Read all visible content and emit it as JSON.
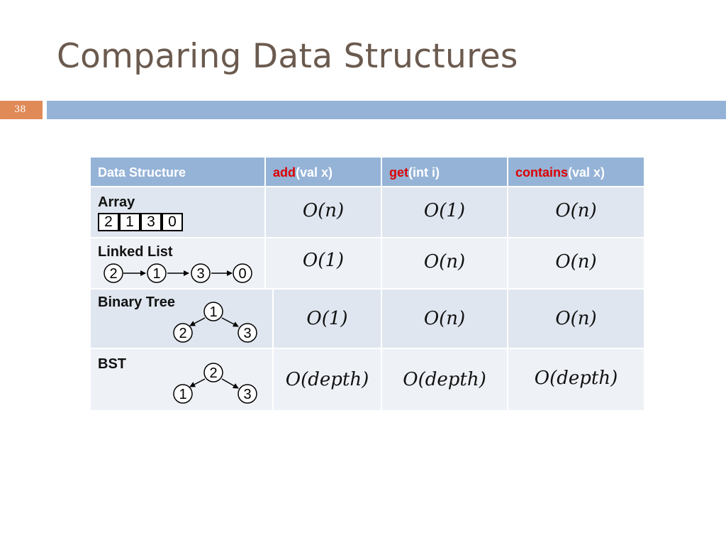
{
  "slide": {
    "title": "Comparing Data Structures",
    "page_number": "38"
  },
  "table": {
    "headers": [
      {
        "prefix": "",
        "text": "Data Structure"
      },
      {
        "prefix": "add",
        "text": "(val x)"
      },
      {
        "prefix": "get",
        "text": "(int i)"
      },
      {
        "prefix": "contains",
        "text": "(val x)"
      }
    ],
    "rows": [
      {
        "name": "Array",
        "add": "O(n)",
        "get": "O(1)",
        "contains": "O(n)"
      },
      {
        "name": "Linked List",
        "add": "O(1)",
        "get": "O(n)",
        "contains": "O(n)"
      },
      {
        "name": "Binary Tree",
        "add": "O(1)",
        "get": "O(n)",
        "contains": "O(n)"
      },
      {
        "name": "BST",
        "add": "O(depth)",
        "get": "O(depth)",
        "contains": "O(depth)"
      }
    ]
  },
  "diagrams": {
    "array_values": [
      "2",
      "1",
      "3",
      "0"
    ],
    "linked_list_nodes": [
      "2",
      "1",
      "3",
      "0"
    ],
    "binary_tree": {
      "root": "1",
      "left": "2",
      "right": "3"
    },
    "bst": {
      "root": "2",
      "left": "1",
      "right": "3"
    }
  }
}
